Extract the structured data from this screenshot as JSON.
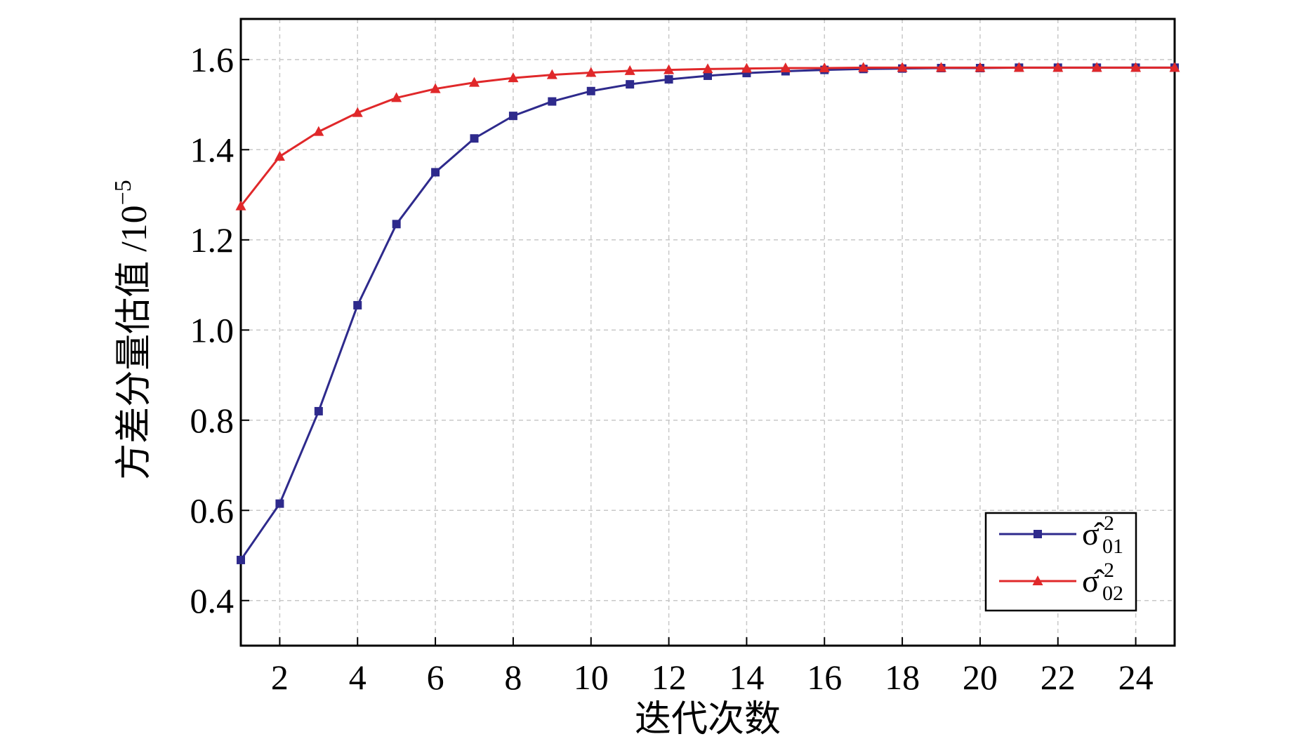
{
  "chart_data": {
    "type": "line",
    "title": "",
    "xlabel": "迭代次数",
    "ylabel": "方差分量估值 /10",
    "ylabel_exponent": "−5",
    "xlim": [
      1,
      25
    ],
    "ylim": [
      0.3,
      1.69
    ],
    "grid": true,
    "x_ticks": [
      2,
      4,
      6,
      8,
      10,
      12,
      14,
      16,
      18,
      20,
      22,
      24
    ],
    "x_tick_labels": [
      "2",
      "4",
      "6",
      "8",
      "10",
      "12",
      "14",
      "16",
      "18",
      "20",
      "22",
      "24"
    ],
    "y_ticks": [
      0.4,
      0.6,
      0.8,
      1.0,
      1.2,
      1.4,
      1.6
    ],
    "y_tick_labels": [
      "0.4",
      "0.6",
      "0.8",
      "1.0",
      "1.2",
      "1.4",
      "1.6"
    ],
    "legend_position": "bottom-right",
    "x": [
      1,
      2,
      3,
      4,
      5,
      6,
      7,
      8,
      9,
      10,
      11,
      12,
      13,
      14,
      15,
      16,
      17,
      18,
      19,
      20,
      21,
      22,
      23,
      24,
      25
    ],
    "series": [
      {
        "name": "σ̂²01",
        "legend_symbol": "σ̂",
        "legend_sup": "2",
        "legend_sub": "01",
        "color": "#2e2a8c",
        "marker": "square",
        "values": [
          0.49,
          0.615,
          0.82,
          1.055,
          1.235,
          1.35,
          1.425,
          1.475,
          1.507,
          1.53,
          1.545,
          1.556,
          1.564,
          1.57,
          1.574,
          1.577,
          1.579,
          1.58,
          1.581,
          1.581,
          1.582,
          1.582,
          1.582,
          1.582,
          1.582
        ]
      },
      {
        "name": "σ̂²02",
        "legend_symbol": "σ̂",
        "legend_sup": "2",
        "legend_sub": "02",
        "color": "#e0282a",
        "marker": "triangle",
        "values": [
          1.275,
          1.385,
          1.44,
          1.482,
          1.515,
          1.535,
          1.549,
          1.559,
          1.566,
          1.571,
          1.575,
          1.577,
          1.579,
          1.58,
          1.581,
          1.581,
          1.582,
          1.582,
          1.582,
          1.582,
          1.582,
          1.582,
          1.582,
          1.582,
          1.582
        ]
      }
    ]
  }
}
